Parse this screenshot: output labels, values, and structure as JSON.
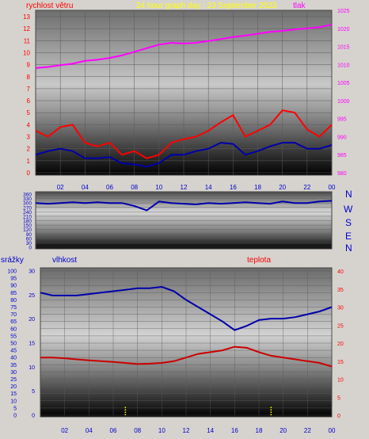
{
  "header": {
    "left_label": "rychlost větru",
    "title": "24 hour graph day : 23 September 2023",
    "right_label": "tlak"
  },
  "direction_axis": {
    "right_letters": [
      "N",
      "W",
      "S",
      "E",
      "N"
    ]
  },
  "bottom_header": {
    "label_left": "srážky",
    "label_mid": "vlhkost",
    "label_right": "teplota"
  },
  "colors": {
    "pressure": "#ff00ff",
    "wind_speed": "#ff0000",
    "wind_avg": "#0000aa",
    "direction": "#0000aa",
    "humidity": "#0000aa",
    "temperature": "#cc0000",
    "rain": "#ffff00",
    "title": "#ffff00",
    "left_axis": "#ff0000",
    "right_axis_top": "#ff00ff",
    "axis_blue": "#0000cc"
  },
  "chart_data": [
    {
      "type": "line",
      "title": "24 hour graph day : 23 September 2023",
      "x_ticks": [
        "02",
        "04",
        "06",
        "08",
        "10",
        "12",
        "14",
        "16",
        "18",
        "20",
        "22",
        "00"
      ],
      "y_left_label": "rychlost větru",
      "y_left_ticks": [
        "0",
        "1",
        "2",
        "3",
        "4",
        "5",
        "6",
        "7",
        "8",
        "9",
        "10",
        "11",
        "12",
        "13"
      ],
      "ylim_left": [
        0,
        13
      ],
      "y_right_label": "tlak",
      "y_right_ticks": [
        "980",
        "985",
        "990",
        "995",
        "1000",
        "1005",
        "1010",
        "1015",
        "1020",
        "1025"
      ],
      "ylim_right": [
        980,
        1025
      ],
      "x_hours": [
        0,
        1,
        2,
        3,
        4,
        5,
        6,
        7,
        8,
        9,
        10,
        11,
        12,
        13,
        14,
        15,
        16,
        17,
        18,
        19,
        20,
        21,
        22,
        23,
        24
      ],
      "series": [
        {
          "name": "tlak",
          "axis": "right",
          "values": [
            1009,
            1009.3,
            1009.8,
            1010.2,
            1011,
            1011.3,
            1011.8,
            1012.5,
            1013.5,
            1014.5,
            1015.5,
            1016,
            1015.8,
            1016,
            1016.5,
            1017,
            1017.6,
            1018,
            1018.5,
            1019,
            1019.3,
            1019.7,
            1020,
            1020.3,
            1021
          ]
        },
        {
          "name": "rychlost větru",
          "axis": "left",
          "values": [
            3.5,
            3,
            3.8,
            4,
            2.5,
            2.2,
            2.5,
            1.5,
            1.8,
            1.2,
            1.5,
            2.5,
            2.8,
            3,
            3.5,
            4.2,
            4.8,
            3,
            3.5,
            4,
            5.2,
            5,
            3.6,
            3,
            4
          ]
        },
        {
          "name": "",
          "axis": "left",
          "values": [
            1.5,
            1.8,
            2,
            1.8,
            1.2,
            1.2,
            1.3,
            0.8,
            0.7,
            0.5,
            0.8,
            1.5,
            1.5,
            1.8,
            2,
            2.5,
            2.4,
            1.5,
            1.8,
            2.2,
            2.5,
            2.5,
            2,
            2,
            2.3
          ]
        }
      ]
    },
    {
      "type": "line",
      "y_ticks": [
        "0",
        "30",
        "60",
        "90",
        "120",
        "150",
        "180",
        "210",
        "240",
        "270",
        "300",
        "330",
        "360"
      ],
      "ylim": [
        0,
        360
      ],
      "x_hours": [
        0,
        1,
        2,
        3,
        4,
        5,
        6,
        7,
        8,
        9,
        10,
        11,
        12,
        13,
        14,
        15,
        16,
        17,
        18,
        19,
        20,
        21,
        22,
        23,
        24
      ],
      "series": [
        {
          "name": "",
          "values": [
            300,
            295,
            300,
            305,
            300,
            305,
            300,
            300,
            280,
            250,
            310,
            300,
            295,
            290,
            300,
            295,
            300,
            305,
            300,
            295,
            310,
            300,
            300,
            310,
            315
          ]
        }
      ]
    },
    {
      "type": "line",
      "x_ticks": [
        "02",
        "04",
        "06",
        "08",
        "10",
        "12",
        "14",
        "16",
        "18",
        "20",
        "22",
        "00"
      ],
      "y_left_label": "srážky",
      "y_left_ticks": [
        "0",
        "5",
        "10",
        "15",
        "20",
        "25",
        "30",
        "35",
        "40",
        "45",
        "50",
        "55",
        "60",
        "65",
        "70",
        "75",
        "80",
        "85",
        "90",
        "95",
        "100"
      ],
      "ylim_left": [
        0,
        100
      ],
      "y_mid_label": "vlhkost",
      "y_mid_ticks": [
        "0",
        "5",
        "10",
        "15",
        "20",
        "25",
        "30"
      ],
      "ylim_mid": [
        0,
        30
      ],
      "y_right_label": "teplota",
      "y_right_ticks": [
        "0",
        "5",
        "10",
        "15",
        "20",
        "25",
        "30",
        "35",
        "40"
      ],
      "ylim_right": [
        0,
        40
      ],
      "x_hours": [
        0,
        1,
        2,
        3,
        4,
        5,
        6,
        7,
        8,
        9,
        10,
        11,
        12,
        13,
        14,
        15,
        16,
        17,
        18,
        19,
        20,
        21,
        22,
        23,
        24
      ],
      "series": [
        {
          "name": "vlhkost",
          "axis": "left",
          "values": [
            85,
            83,
            83,
            83,
            84,
            85,
            86,
            87,
            88,
            88,
            89,
            86,
            80,
            75,
            70,
            65,
            59,
            62,
            66,
            67,
            67,
            68,
            70,
            72,
            75
          ]
        },
        {
          "name": "teplota",
          "axis": "right",
          "values": [
            16,
            16,
            15.8,
            15.5,
            15.2,
            15,
            14.8,
            14.5,
            14.2,
            14.3,
            14.5,
            15,
            16,
            17,
            17.5,
            18,
            19,
            18.7,
            17.5,
            16.5,
            16,
            15.5,
            15,
            14.5,
            13.5
          ]
        },
        {
          "name": "srážky",
          "axis": "left",
          "type": "bar",
          "values": [
            0,
            0,
            0,
            0,
            0,
            0,
            0,
            6,
            0,
            0,
            0,
            0,
            0,
            0,
            0,
            0,
            0,
            0,
            0,
            6,
            0,
            0,
            0,
            0,
            0
          ]
        }
      ]
    }
  ]
}
